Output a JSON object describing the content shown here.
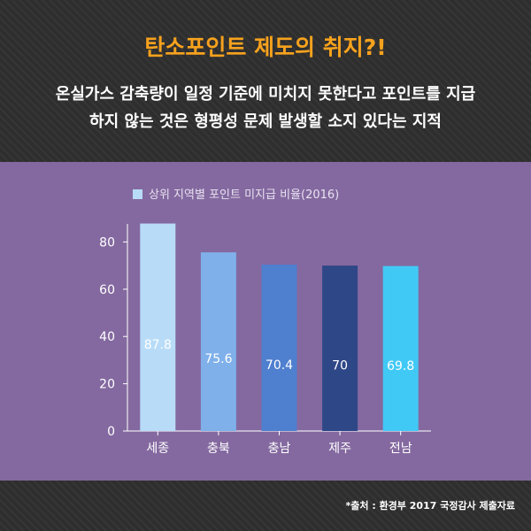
{
  "header": {
    "title": "탄소포인트 제도의 취지?!",
    "subtitle_line1": "온실가스 감축량이 일정 기준에 미치지 못한다고 포인트를 지급",
    "subtitle_line2": "하지 않는 것은 형평성 문제 발생할 소지 있다는 지적"
  },
  "footer": {
    "source": "*출처 : 환경부 2017 국정감사 제출자료"
  },
  "colors": {
    "accent_title": "#f7a21d",
    "panel_bg": "#8469a0",
    "legend_swatch": "#b8dcf8"
  },
  "chart_data": {
    "type": "bar",
    "categories": [
      "세종",
      "충북",
      "충남",
      "제주",
      "전남"
    ],
    "series": [
      {
        "name": "상위 지역별 포인트 미지급 비율(2016)",
        "values": [
          87.8,
          75.6,
          70.4,
          70,
          69.8
        ],
        "colors": [
          "#b8dcf8",
          "#7fb0ea",
          "#4f7fcf",
          "#2e4787",
          "#41c9f6"
        ],
        "labels": [
          "87.8",
          "75.6",
          "70.4",
          "70",
          "69.8"
        ]
      }
    ],
    "yticks": [
      0,
      20,
      40,
      60,
      80
    ],
    "ylim": [
      0,
      90
    ],
    "xlabel": "",
    "ylabel": "",
    "legend_position": "top-left",
    "grid": false
  }
}
